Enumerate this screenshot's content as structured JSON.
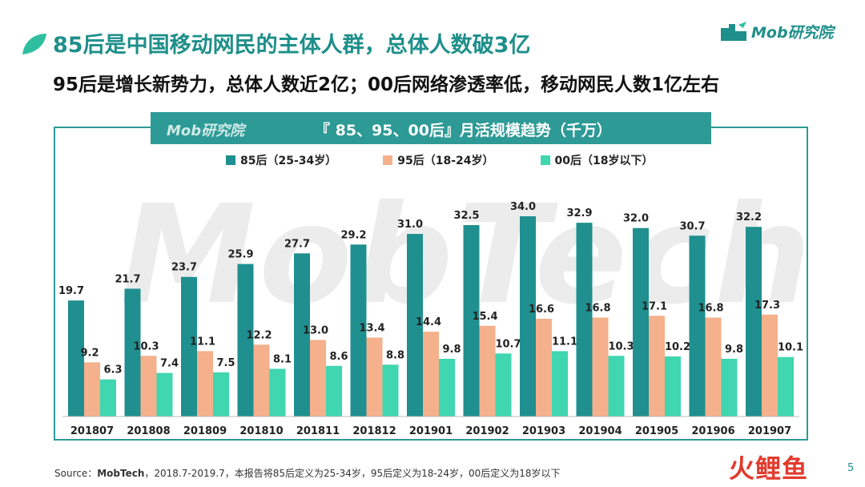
{
  "header": {
    "title": "85后是中国移动网民的主体人群，总体人数破3亿",
    "subtitle": "95后是增长新势力，总体人数近2亿；00后网络渗透率低，移动网民人数1亿左右",
    "brand": "Mob研究院"
  },
  "banner": {
    "logo_text": "Mob研究院",
    "chart_title": "『 85、95、00后』月活规模趋势（千万）"
  },
  "watermark": "MobTech",
  "colors": {
    "teal": "#1f8f8f",
    "salmon": "#f5b08c",
    "mint": "#3fd6b0",
    "accent": "#1e8f8a"
  },
  "chart_data": {
    "type": "bar",
    "title": "『 85、95、00后』月活规模趋势（千万）",
    "categories": [
      "201807",
      "201808",
      "201809",
      "201810",
      "201811",
      "201812",
      "201901",
      "201902",
      "201903",
      "201904",
      "201905",
      "201906",
      "201907"
    ],
    "series": [
      {
        "name": "85后（25-34岁）",
        "values": [
          19.7,
          21.7,
          23.7,
          25.9,
          27.7,
          29.2,
          31.0,
          32.5,
          34.0,
          32.9,
          32.0,
          30.7,
          32.2
        ]
      },
      {
        "name": "95后（18-24岁）",
        "values": [
          9.2,
          10.3,
          11.1,
          12.2,
          13.0,
          13.4,
          14.4,
          15.4,
          16.6,
          16.8,
          17.1,
          16.8,
          17.3
        ]
      },
      {
        "name": "00后（18岁以下）",
        "values": [
          6.3,
          7.4,
          7.5,
          8.1,
          8.6,
          8.8,
          9.8,
          10.7,
          11.1,
          10.3,
          10.2,
          9.8,
          10.1
        ]
      }
    ],
    "value_labels": [
      [
        "19.7",
        "21.7",
        "23.7",
        "25.9",
        "27.7",
        "29.2",
        "31.0",
        "32.5",
        "34.0",
        "32.9",
        "32.0",
        "30.7",
        "32.2"
      ],
      [
        "9.2",
        "10.3",
        "11.1",
        "12.2",
        "13.0",
        "13.4",
        "14.4",
        "15.4",
        "16.6",
        "16.8",
        "17.1",
        "16.8",
        "17.3"
      ],
      [
        "6.3",
        "7.4",
        "7.5",
        "8.1",
        "8.6",
        "8.8",
        "9.8",
        "10.7",
        "11.1",
        "10.3",
        "10.2",
        "9.8",
        "10.1"
      ]
    ],
    "ylim": [
      0,
      34
    ],
    "legend_position": "top",
    "grid": false
  },
  "footer": {
    "source_label": "Source：",
    "source_name": "MobTech",
    "source_note": "，2018.7-2019.7，本报告将85后定义为25-34岁，95后定义为18-24岁，00后定义为18岁以下",
    "corner_logo": "火鲤鱼",
    "page_number": "5"
  }
}
